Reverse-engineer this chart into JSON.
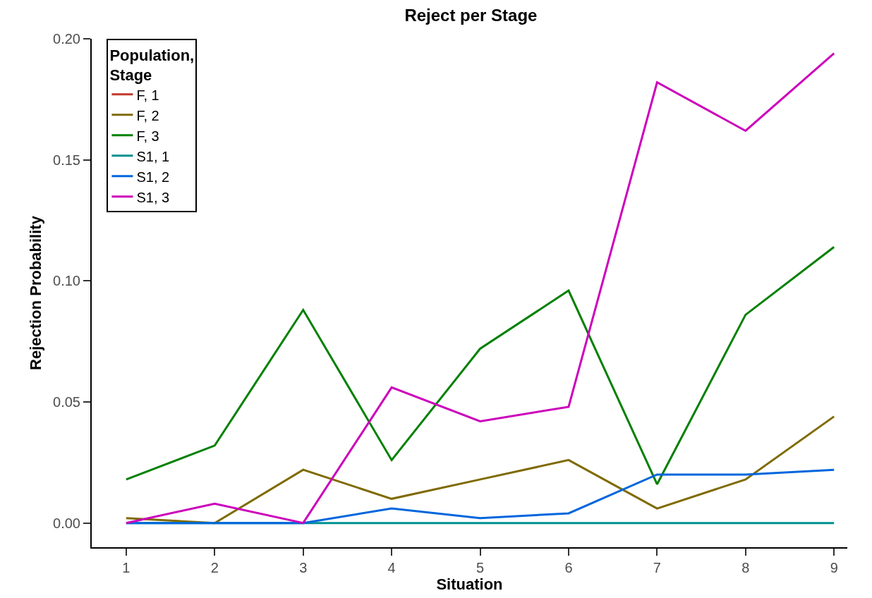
{
  "chart_data": {
    "type": "line",
    "title": "Reject per Stage",
    "xlabel": "Situation",
    "ylabel": "Rejection Probability",
    "legend_title": "Population,\nStage",
    "legend": "top left",
    "x": [
      1,
      2,
      3,
      4,
      5,
      6,
      7,
      8,
      9
    ],
    "xlim": [
      0.61,
      9.15
    ],
    "xticks": [
      1,
      2,
      3,
      4,
      5,
      6,
      7,
      8,
      9
    ],
    "ylim": [
      -0.01,
      0.2
    ],
    "yticks": [
      {
        "value": 0,
        "label": "0.00"
      },
      {
        "value": 0.05,
        "label": "0.05"
      },
      {
        "value": 0.1,
        "label": "0.10"
      },
      {
        "value": 0.15,
        "label": "0.15"
      },
      {
        "value": 0.2,
        "label": "0.20"
      }
    ],
    "series": [
      {
        "name": "F, 1",
        "color": "#c0392b",
        "values": [
          null,
          null,
          null,
          null,
          null,
          null,
          null,
          null,
          null
        ]
      },
      {
        "name": "F, 2",
        "color": "#7f6a00",
        "values": [
          0.002,
          0,
          0.022,
          0.01,
          0.018,
          0.026,
          0.006,
          0.018,
          0.044
        ]
      },
      {
        "name": "F, 3",
        "color": "#008000",
        "values": [
          0.018,
          0.032,
          0.088,
          0.026,
          0.072,
          0.096,
          0.016,
          0.086,
          0.114
        ]
      },
      {
        "name": "S1, 1",
        "color": "#009090",
        "values": [
          0,
          0,
          0,
          0,
          0,
          0,
          0,
          0,
          0
        ]
      },
      {
        "name": "S1, 2",
        "color": "#0066dd",
        "values": [
          0,
          0,
          0,
          0.006,
          0.002,
          0.004,
          0.02,
          0.02,
          0.022
        ]
      },
      {
        "name": "S1, 3",
        "color": "#cc00bb",
        "values": [
          0,
          0.008,
          0,
          0.056,
          0.042,
          0.048,
          0.182,
          0.162,
          0.194
        ]
      }
    ]
  }
}
